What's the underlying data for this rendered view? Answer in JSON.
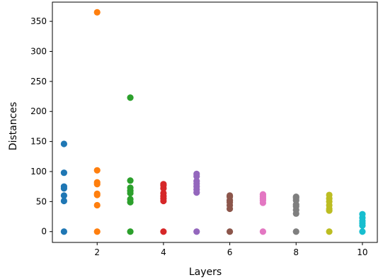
{
  "chart_data": {
    "type": "scatter",
    "title": "",
    "xlabel": "Layers",
    "ylabel": "Distances",
    "xlim": [
      0.65,
      10.45
    ],
    "ylim": [
      -18,
      382
    ],
    "xticks": [
      2,
      4,
      6,
      8,
      10
    ],
    "yticks": [
      0,
      50,
      100,
      150,
      200,
      250,
      300,
      350
    ],
    "grid": false,
    "legend": "none",
    "series": [
      {
        "x": 1,
        "color": "#1f77b4",
        "values": [
          0,
          51,
          60,
          72,
          75,
          98,
          146
        ]
      },
      {
        "x": 2,
        "color": "#ff7f0e",
        "values": [
          0,
          44,
          61,
          63,
          79,
          82,
          102,
          365
        ]
      },
      {
        "x": 3,
        "color": "#2ca02c",
        "values": [
          0,
          49,
          54,
          64,
          68,
          73,
          85,
          223
        ]
      },
      {
        "x": 4,
        "color": "#d62728",
        "values": [
          0,
          51,
          55,
          59,
          64,
          72,
          77,
          79
        ]
      },
      {
        "x": 5,
        "color": "#9467bd",
        "values": [
          0,
          65,
          70,
          75,
          80,
          84,
          92,
          96
        ]
      },
      {
        "x": 6,
        "color": "#8c564b",
        "values": [
          0,
          38,
          44,
          49,
          52,
          58,
          60
        ]
      },
      {
        "x": 7,
        "color": "#e377c2",
        "values": [
          0,
          48,
          52,
          55,
          58,
          61,
          62
        ]
      },
      {
        "x": 8,
        "color": "#7f7f7f",
        "values": [
          0,
          30,
          36,
          42,
          45,
          52,
          56,
          58
        ]
      },
      {
        "x": 9,
        "color": "#bcbd22",
        "values": [
          0,
          35,
          38,
          44,
          50,
          55,
          61
        ]
      },
      {
        "x": 10,
        "color": "#17becf",
        "values": [
          0,
          10,
          14,
          18,
          23,
          29
        ]
      }
    ]
  }
}
